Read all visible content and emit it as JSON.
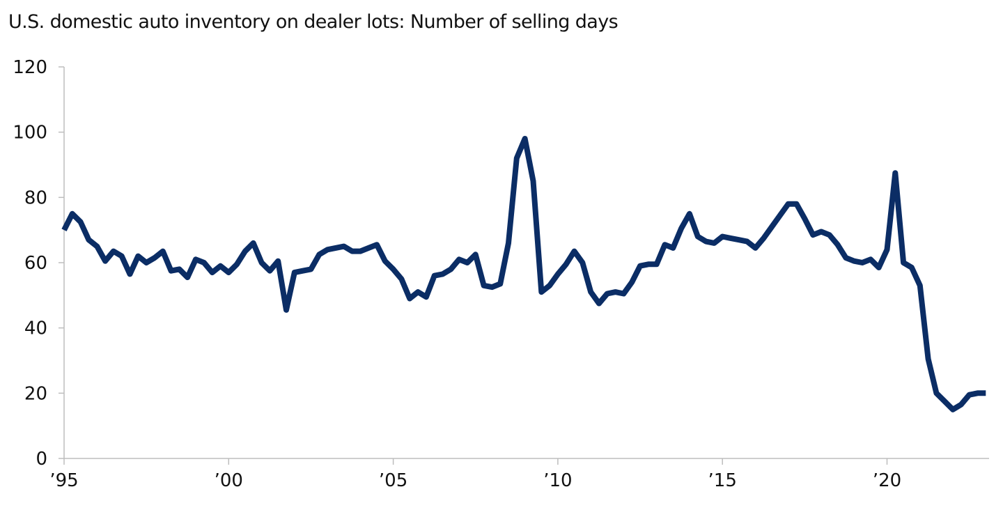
{
  "chart_data": {
    "type": "line",
    "title": "U.S. domestic auto inventory on dealer lots: Number of selling days",
    "xlabel": "",
    "ylabel": "",
    "xlim": [
      1995.0,
      2023.1
    ],
    "ylim": [
      0,
      120
    ],
    "grid": false,
    "legend": "none",
    "x_ticks": [
      {
        "value": 1995,
        "label": "’95"
      },
      {
        "value": 2000,
        "label": "’00"
      },
      {
        "value": 2005,
        "label": "’05"
      },
      {
        "value": 2010,
        "label": "’10"
      },
      {
        "value": 2015,
        "label": "’15"
      },
      {
        "value": 2020,
        "label": "’20"
      }
    ],
    "y_ticks": [
      0,
      20,
      40,
      60,
      80,
      100,
      120
    ],
    "colors": {
      "line": "#0b2d65",
      "axis": "#bdbdbd",
      "text": "#111111"
    },
    "series": [
      {
        "x": [
          1995.0,
          1995.25,
          1995.5,
          1995.75,
          1996.0,
          1996.25,
          1996.5,
          1996.75,
          1997.0,
          1997.25,
          1997.5,
          1997.75,
          1998.0,
          1998.25,
          1998.5,
          1998.75,
          1999.0,
          1999.25,
          1999.5,
          1999.75,
          2000.0,
          2000.25,
          2000.5,
          2000.75,
          2001.0,
          2001.25,
          2001.5,
          2001.75,
          2002.0,
          2002.25,
          2002.5,
          2002.75,
          2003.0,
          2003.25,
          2003.5,
          2003.75,
          2004.0,
          2004.25,
          2004.5,
          2004.75,
          2005.0,
          2005.25,
          2005.5,
          2005.75,
          2006.0,
          2006.25,
          2006.5,
          2006.75,
          2007.0,
          2007.25,
          2007.5,
          2007.75,
          2008.0,
          2008.25,
          2008.5,
          2008.75,
          2009.0,
          2009.25,
          2009.5,
          2009.75,
          2010.0,
          2010.25,
          2010.5,
          2010.75,
          2011.0,
          2011.25,
          2011.5,
          2011.75,
          2012.0,
          2012.25,
          2012.5,
          2012.75,
          2013.0,
          2013.25,
          2013.5,
          2013.75,
          2014.0,
          2014.25,
          2014.5,
          2014.75,
          2015.0,
          2015.25,
          2015.5,
          2015.75,
          2016.0,
          2016.25,
          2016.5,
          2016.75,
          2017.0,
          2017.25,
          2017.5,
          2017.75,
          2018.0,
          2018.25,
          2018.5,
          2018.75,
          2019.0,
          2019.25,
          2019.5,
          2019.75,
          2020.0,
          2020.25,
          2020.5,
          2020.75,
          2021.0,
          2021.25,
          2021.5,
          2021.75,
          2022.0,
          2022.25,
          2022.5,
          2022.75,
          2023.0
        ],
        "values": [
          70,
          75,
          72.5,
          67,
          65,
          60.5,
          63.5,
          62,
          56.5,
          62,
          60,
          61.5,
          63.5,
          57.5,
          58,
          55.5,
          61,
          60,
          57,
          59,
          57,
          59.5,
          63.5,
          66,
          60,
          57.5,
          60.5,
          45.5,
          57,
          57.5,
          58,
          62.5,
          64,
          64.5,
          65,
          63.5,
          63.5,
          64.5,
          65.5,
          60.5,
          58,
          55,
          49,
          51,
          49.5,
          56,
          56.5,
          58,
          61,
          60,
          62.5,
          53,
          52.5,
          53.5,
          66,
          92,
          98,
          85,
          51,
          53,
          56.5,
          59.5,
          63.5,
          60,
          51,
          47.5,
          50.5,
          51,
          50.5,
          54,
          59,
          59.5,
          59.5,
          65.5,
          64.5,
          70.5,
          75,
          68,
          66.5,
          66,
          68,
          67.5,
          67,
          66.5,
          64.5,
          67.5,
          71,
          74.5,
          78,
          78,
          73.5,
          68.5,
          69.5,
          68.5,
          65.5,
          61.5,
          60.5,
          60,
          61,
          58.5,
          64,
          87.5,
          60,
          58.5,
          53,
          30.5,
          20,
          17.5,
          15,
          16.5,
          19.5,
          20,
          20
        ]
      }
    ]
  }
}
